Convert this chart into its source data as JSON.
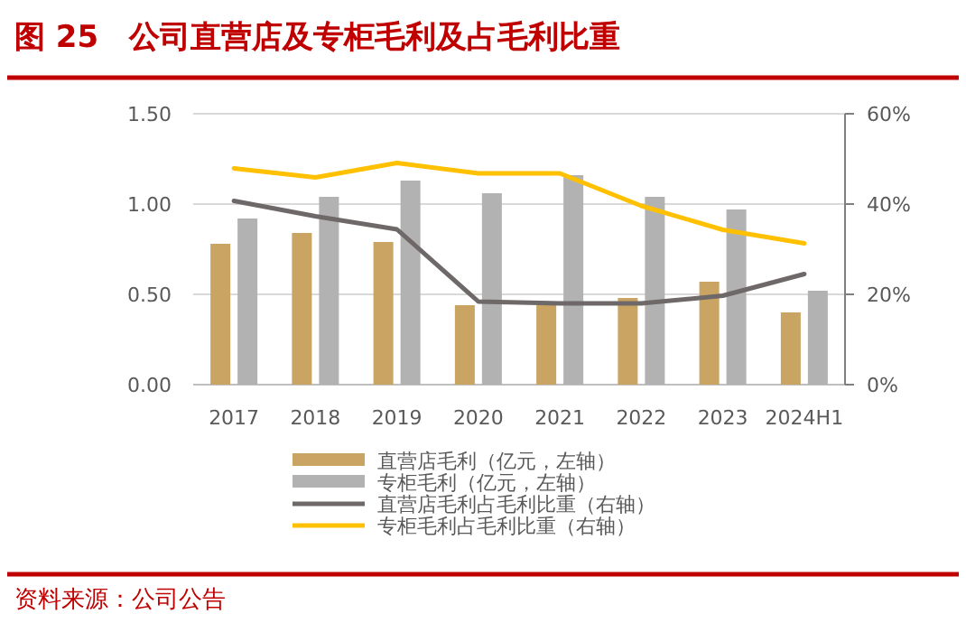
{
  "chart_data": {
    "type": "bar",
    "title": "图 25　公司直营店及专柜毛利及占毛利比重",
    "categories": [
      "2017",
      "2018",
      "2019",
      "2020",
      "2021",
      "2022",
      "2023",
      "2024H1"
    ],
    "series": [
      {
        "name": "直营店毛利（亿元，左轴）",
        "color": "#c9a463",
        "values": [
          0.78,
          0.84,
          0.79,
          0.44,
          0.44,
          0.48,
          0.57,
          0.4
        ]
      },
      {
        "name": "专柜毛利（亿元，左轴）",
        "color": "#b2b2b2",
        "values": [
          0.92,
          1.04,
          1.13,
          1.06,
          1.16,
          1.04,
          0.97,
          0.52
        ]
      },
      {
        "name": "直营店毛利占毛利比重（右轴）",
        "type": "line",
        "axis": "y2",
        "color": "#6e6868",
        "values": [
          40.7,
          37.3,
          34.4,
          18.4,
          18.0,
          18.0,
          19.7,
          24.5
        ]
      },
      {
        "name": "专柜毛利占毛利比重（右轴）",
        "type": "line",
        "axis": "y2",
        "color": "#ffc000",
        "values": [
          47.9,
          45.9,
          49.1,
          46.8,
          46.8,
          39.6,
          34.3,
          31.3
        ]
      }
    ],
    "ylim": [
      0,
      1.5
    ],
    "yticks": [
      {
        "value": 0,
        "label": "0.00"
      },
      {
        "value": 0.5,
        "label": "0.50"
      },
      {
        "value": 1,
        "label": "1.00"
      },
      {
        "value": 1.5,
        "label": "1.50"
      }
    ],
    "y2lim": [
      0,
      60
    ],
    "y2ticks": [
      {
        "value": 0,
        "label": "0%"
      },
      {
        "value": 20,
        "label": "20%"
      },
      {
        "value": 40,
        "label": "40%"
      },
      {
        "value": 60,
        "label": "60%"
      }
    ],
    "grid": "y",
    "legend": "bottom",
    "annotations": [
      "资料来源：公司公告"
    ]
  }
}
